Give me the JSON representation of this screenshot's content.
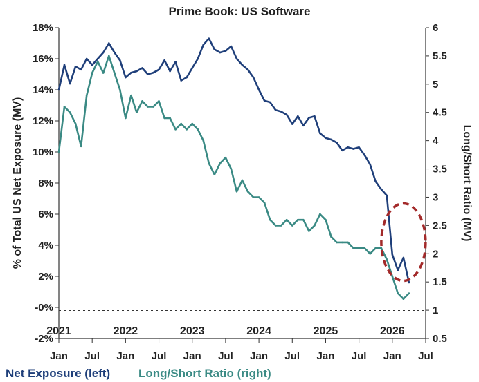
{
  "chart_data": {
    "type": "line",
    "title": "Prime Book: US Software",
    "ylabel_left": "% of Total US Net Exposure (MV)",
    "ylabel_right": "Long/Short Ratio (MV)",
    "x_ticks": [
      "Jan",
      "Jul",
      "Jan",
      "Jul",
      "Jan",
      "Jul",
      "Jan",
      "Jul",
      "Jan",
      "Jul",
      "Jan",
      "Jul"
    ],
    "year_labels": [
      "2021",
      "2022",
      "2023",
      "2024",
      "2025",
      "2026"
    ],
    "y_left_ticks": [
      "18%",
      "16%",
      "14%",
      "12%",
      "10%",
      "8%",
      "6%",
      "4%",
      "2%",
      "-0%",
      "-2%"
    ],
    "y_left_range": [
      -2,
      18
    ],
    "y_right_ticks": [
      "6",
      "5.5",
      "5",
      "4.5",
      "4",
      "3.5",
      "3",
      "2.5",
      "2",
      "1.5",
      "1",
      "0.5"
    ],
    "y_right_range": [
      0.5,
      6
    ],
    "x_range": [
      "2021-01",
      "2026-07"
    ],
    "reference_line": {
      "axis": "left",
      "value": -0.2,
      "style": "dashed"
    },
    "series": [
      {
        "name": "Net Exposure (left)",
        "axis": "left",
        "color": "#1f3f7a",
        "points": [
          [
            "2021-01",
            14.0
          ],
          [
            "2021-02",
            15.6
          ],
          [
            "2021-03",
            14.4
          ],
          [
            "2021-04",
            15.5
          ],
          [
            "2021-05",
            15.3
          ],
          [
            "2021-06",
            16.0
          ],
          [
            "2021-07",
            15.6
          ],
          [
            "2021-08",
            16.0
          ],
          [
            "2021-09",
            16.4
          ],
          [
            "2021-10",
            17.0
          ],
          [
            "2021-11",
            16.4
          ],
          [
            "2021-12",
            15.9
          ],
          [
            "2022-01",
            14.8
          ],
          [
            "2022-02",
            15.1
          ],
          [
            "2022-03",
            15.2
          ],
          [
            "2022-04",
            15.4
          ],
          [
            "2022-05",
            15.0
          ],
          [
            "2022-06",
            15.1
          ],
          [
            "2022-07",
            15.3
          ],
          [
            "2022-08",
            15.9
          ],
          [
            "2022-09",
            15.2
          ],
          [
            "2022-10",
            15.8
          ],
          [
            "2022-11",
            14.6
          ],
          [
            "2022-12",
            14.8
          ],
          [
            "2023-01",
            15.4
          ],
          [
            "2023-02",
            16.0
          ],
          [
            "2023-03",
            16.9
          ],
          [
            "2023-04",
            17.3
          ],
          [
            "2023-05",
            16.6
          ],
          [
            "2023-06",
            16.4
          ],
          [
            "2023-07",
            16.5
          ],
          [
            "2023-08",
            16.8
          ],
          [
            "2023-09",
            16.0
          ],
          [
            "2023-10",
            15.6
          ],
          [
            "2023-11",
            15.3
          ],
          [
            "2023-12",
            14.8
          ],
          [
            "2024-01",
            14.0
          ],
          [
            "2024-02",
            13.3
          ],
          [
            "2024-03",
            13.2
          ],
          [
            "2024-04",
            12.7
          ],
          [
            "2024-05",
            12.6
          ],
          [
            "2024-06",
            12.4
          ],
          [
            "2024-07",
            11.8
          ],
          [
            "2024-08",
            12.3
          ],
          [
            "2024-09",
            11.7
          ],
          [
            "2024-10",
            12.2
          ],
          [
            "2024-11",
            12.3
          ],
          [
            "2024-12",
            11.2
          ],
          [
            "2025-01",
            10.9
          ],
          [
            "2025-02",
            10.8
          ],
          [
            "2025-03",
            10.6
          ],
          [
            "2025-04",
            10.1
          ],
          [
            "2025-05",
            10.3
          ],
          [
            "2025-06",
            10.2
          ],
          [
            "2025-07",
            10.3
          ],
          [
            "2025-08",
            9.8
          ],
          [
            "2025-09",
            9.2
          ],
          [
            "2025-10",
            8.1
          ],
          [
            "2025-11",
            7.6
          ],
          [
            "2025-12",
            7.2
          ],
          [
            "2026-01",
            3.4
          ],
          [
            "2026-02",
            2.4
          ],
          [
            "2026-03",
            3.2
          ],
          [
            "2026-04",
            1.6
          ]
        ]
      },
      {
        "name": "Long/Short Ratio (right)",
        "axis": "right",
        "color": "#3a8a84",
        "points": [
          [
            "2021-01",
            3.8
          ],
          [
            "2021-02",
            4.6
          ],
          [
            "2021-03",
            4.5
          ],
          [
            "2021-04",
            4.3
          ],
          [
            "2021-05",
            3.9
          ],
          [
            "2021-06",
            4.8
          ],
          [
            "2021-07",
            5.2
          ],
          [
            "2021-08",
            5.4
          ],
          [
            "2021-09",
            5.2
          ],
          [
            "2021-10",
            5.5
          ],
          [
            "2021-11",
            5.2
          ],
          [
            "2021-12",
            4.9
          ],
          [
            "2022-01",
            4.4
          ],
          [
            "2022-02",
            4.8
          ],
          [
            "2022-03",
            4.5
          ],
          [
            "2022-04",
            4.7
          ],
          [
            "2022-05",
            4.6
          ],
          [
            "2022-06",
            4.6
          ],
          [
            "2022-07",
            4.7
          ],
          [
            "2022-08",
            4.4
          ],
          [
            "2022-09",
            4.4
          ],
          [
            "2022-10",
            4.2
          ],
          [
            "2022-11",
            4.3
          ],
          [
            "2022-12",
            4.2
          ],
          [
            "2023-01",
            4.3
          ],
          [
            "2023-02",
            4.2
          ],
          [
            "2023-03",
            4.0
          ],
          [
            "2023-04",
            3.6
          ],
          [
            "2023-05",
            3.4
          ],
          [
            "2023-06",
            3.6
          ],
          [
            "2023-07",
            3.7
          ],
          [
            "2023-08",
            3.5
          ],
          [
            "2023-09",
            3.1
          ],
          [
            "2023-10",
            3.3
          ],
          [
            "2023-11",
            3.1
          ],
          [
            "2023-12",
            3.0
          ],
          [
            "2024-01",
            3.0
          ],
          [
            "2024-02",
            2.9
          ],
          [
            "2024-03",
            2.6
          ],
          [
            "2024-04",
            2.5
          ],
          [
            "2024-05",
            2.5
          ],
          [
            "2024-06",
            2.6
          ],
          [
            "2024-07",
            2.5
          ],
          [
            "2024-08",
            2.6
          ],
          [
            "2024-09",
            2.6
          ],
          [
            "2024-10",
            2.4
          ],
          [
            "2024-11",
            2.5
          ],
          [
            "2024-12",
            2.7
          ],
          [
            "2025-01",
            2.6
          ],
          [
            "2025-02",
            2.3
          ],
          [
            "2025-03",
            2.2
          ],
          [
            "2025-04",
            2.2
          ],
          [
            "2025-05",
            2.2
          ],
          [
            "2025-06",
            2.1
          ],
          [
            "2025-07",
            2.1
          ],
          [
            "2025-08",
            2.1
          ],
          [
            "2025-09",
            2.0
          ],
          [
            "2025-10",
            2.1
          ],
          [
            "2025-11",
            2.1
          ],
          [
            "2025-12",
            1.9
          ],
          [
            "2026-01",
            1.6
          ],
          [
            "2026-02",
            1.3
          ],
          [
            "2026-03",
            1.2
          ],
          [
            "2026-04",
            1.3
          ]
        ]
      }
    ],
    "annotation": {
      "shape": "dashed-ellipse",
      "color": "#a32a2a",
      "around": "2026 decline"
    },
    "grid": false,
    "legend_placement": "bottom-left"
  }
}
